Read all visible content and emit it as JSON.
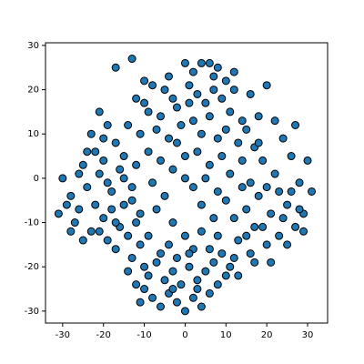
{
  "chart_data": {
    "type": "scatter",
    "color": "#1f77b4",
    "edgecolor": "#000000",
    "x": [
      -13,
      -10,
      -8,
      -5,
      -3,
      0,
      2,
      4,
      6,
      8,
      10,
      12,
      -12,
      -9,
      -6,
      -2,
      1,
      3,
      5,
      7,
      9,
      11,
      14,
      -14,
      -11,
      -7,
      -4,
      -1,
      2,
      4,
      6,
      8,
      10,
      13,
      -15,
      -12,
      -9,
      -6,
      -3,
      0,
      3,
      6,
      9,
      -17,
      -19,
      -20,
      -22,
      -17,
      -21,
      16,
      15,
      17,
      20,
      18,
      0,
      -8,
      -5,
      2,
      5,
      8,
      -2,
      1,
      -4,
      7,
      -10,
      12,
      14,
      11,
      -13,
      -15,
      -11,
      -7,
      -3,
      4,
      7,
      10,
      -31,
      -30,
      -28,
      -27,
      -26,
      -25,
      -24,
      -23,
      -22,
      -21,
      -20,
      -19,
      -18,
      -17,
      -16,
      -15,
      -14,
      -13,
      -12,
      -11,
      -25,
      -28,
      -29,
      -24,
      -23,
      -20,
      -18,
      -16,
      -13,
      -21,
      -26,
      -19,
      -10,
      -9,
      -14,
      -12,
      -17,
      31,
      30,
      29,
      28,
      27,
      26,
      25,
      24,
      23,
      22,
      21,
      20,
      19,
      18,
      17,
      16,
      15,
      14,
      13,
      12,
      27,
      25,
      22,
      20,
      18,
      24,
      28,
      29,
      21,
      17,
      26,
      23,
      19,
      16,
      15,
      11,
      13,
      -8,
      -6,
      -4,
      -2,
      0,
      2,
      4,
      6,
      8,
      10,
      -9,
      -7,
      -5,
      -3,
      -1,
      1,
      3,
      5,
      7,
      9,
      -10,
      -6,
      -2,
      2,
      6,
      4,
      0,
      -4,
      8,
      12,
      -11,
      3,
      -3,
      1
    ],
    "y": [
      27,
      22,
      21,
      20,
      18,
      26,
      24,
      26,
      26,
      25,
      22,
      20,
      18,
      15,
      14,
      16,
      21,
      19,
      17,
      20,
      18,
      15,
      13,
      12,
      10,
      11,
      9,
      12,
      13,
      10,
      14,
      9,
      11,
      8,
      5,
      3,
      6,
      4,
      2,
      5,
      6,
      3,
      5,
      8,
      12,
      9,
      6,
      25,
      15,
      19,
      11,
      7,
      21,
      14,
      0,
      -1,
      -4,
      -2,
      0,
      -3,
      8,
      17,
      23,
      23,
      17,
      24,
      4,
      1,
      -2,
      0,
      -8,
      -7,
      -10,
      -6,
      -9,
      -5,
      -8,
      0,
      -4,
      -10,
      -7,
      3,
      -2,
      -12,
      -6,
      1,
      -9,
      -14,
      -3,
      -16,
      -11,
      -6,
      -13,
      -18,
      -10,
      -15,
      -14,
      -12,
      -6,
      6,
      10,
      4,
      -7,
      2,
      -5,
      -12,
      1,
      -1,
      -20,
      -13,
      -21,
      -24,
      -10,
      -3,
      4,
      -8,
      -1,
      -11,
      5,
      -6,
      9,
      -13,
      1,
      -8,
      -15,
      4,
      -4,
      -11,
      -17,
      -7,
      -2,
      -14,
      -9,
      12,
      -15,
      13,
      -2,
      8,
      -9,
      -7,
      -12,
      -19,
      -19,
      -3,
      -3,
      -11,
      -1,
      -13,
      -20,
      -22,
      -27,
      -29,
      -26,
      -28,
      -30,
      -27,
      -29,
      -26,
      -24,
      -22,
      -22,
      -19,
      -23,
      -21,
      -24,
      -20,
      -23,
      -21,
      -19,
      -17,
      -25,
      -17,
      -18,
      -16,
      -16,
      -12,
      -13,
      -15,
      -13,
      -18,
      -28,
      -25,
      -25,
      -17
    ],
    "xlim": [
      -34.2,
      34.9
    ],
    "ylim": [
      -32.7,
      30.6
    ],
    "xticks": [
      -30,
      -20,
      -10,
      0,
      10,
      20,
      30
    ],
    "yticks": [
      -30,
      -20,
      -10,
      0,
      10,
      20,
      30
    ]
  }
}
